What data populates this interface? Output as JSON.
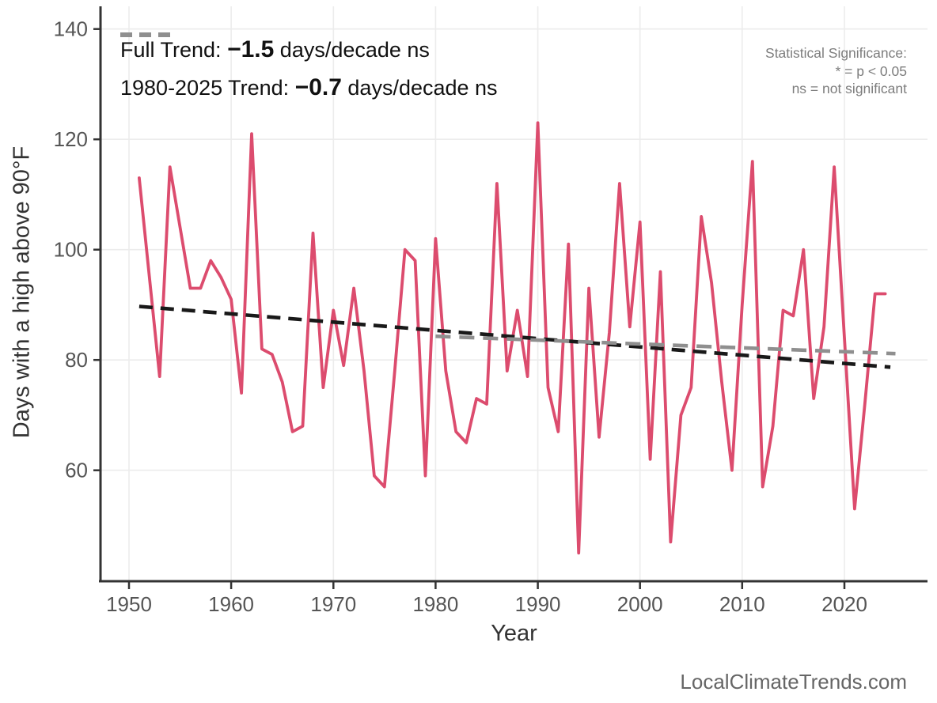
{
  "page": {
    "footer": "LocalClimateTrends.com"
  },
  "legend": {
    "items": [
      {
        "name": "full-trend",
        "prefix": "Full Trend: ",
        "value": "−1.5",
        "suffix": " days/decade ns",
        "color": "#191919"
      },
      {
        "name": "recent-trend",
        "prefix": "1980-2025 Trend: ",
        "value": "−0.7",
        "suffix": " days/decade ns",
        "color": "#8f8f8f"
      }
    ]
  },
  "significance_note": {
    "line1": "Statistical Significance:",
    "line2": "* = p < 0.05",
    "line3": "ns = not significant"
  },
  "chart_data": {
    "type": "line",
    "title": "",
    "xlabel": "Year",
    "ylabel": "Days with a high above 90°F",
    "grid": true,
    "legend_position": "top-left",
    "x_ticks": [
      1950,
      1960,
      1970,
      1980,
      1990,
      2000,
      2010,
      2020
    ],
    "y_ticks": [
      60,
      80,
      100,
      120,
      140
    ],
    "xlim": [
      1947.2,
      2028.1
    ],
    "ylim": [
      39.9,
      143.8
    ],
    "series": [
      {
        "name": "Days with a high above 90°F",
        "color": "#dc4c6e",
        "year_range": [
          1951,
          2024
        ],
        "values": [
          113,
          95,
          77,
          115,
          104,
          93,
          93,
          98,
          95,
          91,
          74,
          121,
          82,
          81,
          76,
          67,
          68,
          103,
          75,
          89,
          79,
          93,
          78,
          59,
          57,
          78,
          100,
          98,
          59,
          102,
          78,
          67,
          65,
          73,
          72,
          112,
          78,
          89,
          77,
          123,
          75,
          67,
          101,
          45,
          93,
          66,
          85,
          112,
          86,
          105,
          62,
          96,
          47,
          70,
          75,
          106,
          94,
          76,
          60,
          90,
          116,
          57,
          68,
          89,
          88,
          100,
          73,
          86,
          115,
          84,
          53,
          72,
          92,
          92
        ]
      }
    ],
    "trend_lines": [
      {
        "name": "Full Trend",
        "slope_days_per_decade": -1.5,
        "significance": "ns",
        "year1": 1951,
        "value1": 89.7,
        "year2": 2024.5,
        "value2": 78.7,
        "color": "#191919",
        "dash": [
          17,
          10
        ]
      },
      {
        "name": "1980-2025 Trend",
        "slope_days_per_decade": -0.7,
        "significance": "ns",
        "year1": 1980,
        "value1": 84.3,
        "year2": 2025,
        "value2": 81.15,
        "color": "#8f8f8f",
        "dash": [
          19,
          11
        ]
      }
    ]
  }
}
